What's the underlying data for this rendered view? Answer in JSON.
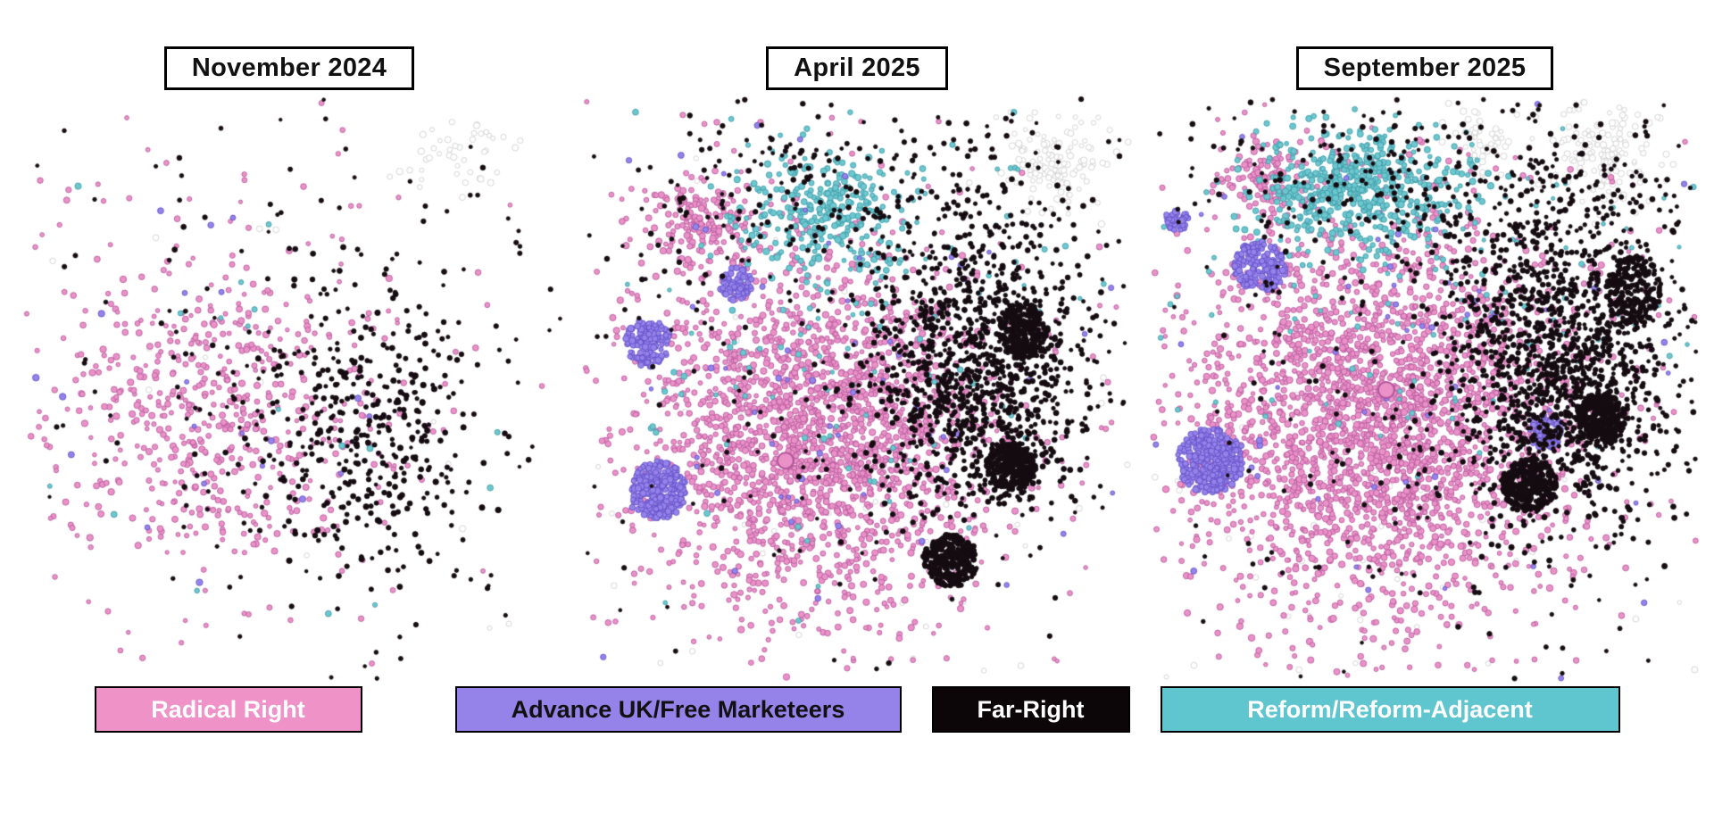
{
  "legend": {
    "items": [
      {
        "label": "Radical Right",
        "color": "#ee92c8",
        "text_color": "#ffffff",
        "border": "#000000"
      },
      {
        "label": "Advance UK/Free Marketeers",
        "color": "#9583ea",
        "text_color": "#111111",
        "border": "#000000"
      },
      {
        "label": "Far-Right",
        "color": "#0d0609",
        "text_color": "#ffffff",
        "border": "#000000"
      },
      {
        "label": "Reform/Reform-Adjacent",
        "color": "#5fc6d0",
        "text_color": "#ffffff",
        "border": "#000000"
      }
    ]
  },
  "chart_data": {
    "type": "scatter",
    "title": "",
    "legend_entries": [
      "Radical Right",
      "Advance UK/Free Marketeers",
      "Far-Right",
      "Reform/Reform-Adjacent"
    ],
    "series_colors": {
      "radical_right": {
        "fill": "#ea92c7",
        "stroke": "#b2549b"
      },
      "advance_uk": {
        "fill": "#9583ea",
        "stroke": "#5f4bc4"
      },
      "far_right": {
        "fill": "#150c11",
        "stroke": "#150c11"
      },
      "reform": {
        "fill": "#6cc7cf",
        "stroke": "#3a98a4"
      },
      "unaffiliated": {
        "fill": "#ffffff",
        "stroke": "#cccccc"
      }
    },
    "panels": [
      {
        "title": "November 2024",
        "seed": 11,
        "clusters": [
          {
            "s": "unaffiliated",
            "n": 45,
            "cx": 0.8,
            "cy": 0.1,
            "sx": 0.05,
            "sy": 0.04,
            "sh": "g",
            "r": 3
          },
          {
            "s": "unaffiliated",
            "n": 18,
            "cx": 0.55,
            "cy": 0.45,
            "sx": 0.3,
            "sy": 0.3,
            "sh": "g",
            "r": 3
          },
          {
            "s": "radical_right",
            "n": 420,
            "cx": 0.36,
            "cy": 0.55,
            "sx": 0.14,
            "sy": 0.12,
            "sh": "g",
            "r": 3
          },
          {
            "s": "radical_right",
            "n": 200,
            "cx": 0.38,
            "cy": 0.52,
            "sx": 0.24,
            "sy": 0.2,
            "sh": "g",
            "r": 2.8
          },
          {
            "s": "radical_right",
            "n": 45,
            "cx": 0.4,
            "cy": 0.5,
            "sx": 0.38,
            "sy": 0.3,
            "sh": "g",
            "r": 2.6
          },
          {
            "s": "reform",
            "n": 22,
            "cx": 0.35,
            "cy": 0.5,
            "sx": 0.28,
            "sy": 0.26,
            "sh": "g",
            "r": 3
          },
          {
            "s": "advance_uk",
            "n": 26,
            "cx": 0.3,
            "cy": 0.52,
            "sx": 0.27,
            "sy": 0.24,
            "sh": "g",
            "r": 3
          },
          {
            "s": "far_right",
            "n": 330,
            "cx": 0.63,
            "cy": 0.56,
            "sx": 0.1,
            "sy": 0.13,
            "sh": "g",
            "r": 2.6
          },
          {
            "s": "far_right",
            "n": 140,
            "cx": 0.58,
            "cy": 0.5,
            "sx": 0.2,
            "sy": 0.22,
            "sh": "g",
            "r": 2.4
          },
          {
            "s": "far_right",
            "n": 60,
            "cx": 0.55,
            "cy": 0.4,
            "sx": 0.3,
            "sy": 0.28,
            "sh": "g",
            "r": 2.2
          },
          {
            "s": "far_right",
            "n": 35,
            "cx": 0.75,
            "cy": 0.5,
            "sx": 0.12,
            "sy": 0.18,
            "sh": "g",
            "r": 2.4
          }
        ]
      },
      {
        "title": "April 2025",
        "seed": 22,
        "highlight": {
          "x": 0.37,
          "y": 0.62,
          "r": 9
        },
        "clusters": [
          {
            "s": "unaffiliated",
            "n": 130,
            "cx": 0.86,
            "cy": 0.12,
            "sx": 0.05,
            "sy": 0.04,
            "sh": "g",
            "r": 3
          },
          {
            "s": "unaffiliated",
            "n": 60,
            "cx": 0.5,
            "cy": 0.6,
            "sx": 0.35,
            "sy": 0.3,
            "sh": "g",
            "r": 2.8
          },
          {
            "s": "radical_right",
            "n": 2000,
            "cx": 0.43,
            "cy": 0.57,
            "sx": 0.155,
            "sy": 0.15,
            "sh": "g",
            "r": 3
          },
          {
            "s": "radical_right",
            "n": 170,
            "cx": 0.22,
            "cy": 0.21,
            "sx": 0.05,
            "sy": 0.04,
            "sh": "g",
            "r": 3
          },
          {
            "s": "radical_right",
            "n": 300,
            "cx": 0.45,
            "cy": 0.55,
            "sx": 0.3,
            "sy": 0.27,
            "sh": "g",
            "r": 2.8
          },
          {
            "s": "reform",
            "n": 300,
            "cx": 0.43,
            "cy": 0.2,
            "sx": 0.08,
            "sy": 0.055,
            "sh": "g",
            "r": 3
          },
          {
            "s": "reform",
            "n": 130,
            "cx": 0.5,
            "cy": 0.4,
            "sx": 0.22,
            "sy": 0.18,
            "sh": "g",
            "r": 2.8
          },
          {
            "s": "advance_uk",
            "n": 280,
            "cx": 0.14,
            "cy": 0.67,
            "sx": 0.05,
            "sy": 0.05,
            "sh": "d",
            "r": 3
          },
          {
            "s": "advance_uk",
            "n": 140,
            "cx": 0.12,
            "cy": 0.42,
            "sx": 0.042,
            "sy": 0.04,
            "sh": "d",
            "r": 3
          },
          {
            "s": "advance_uk",
            "n": 70,
            "cx": 0.28,
            "cy": 0.32,
            "sx": 0.03,
            "sy": 0.028,
            "sh": "d",
            "r": 3
          },
          {
            "s": "advance_uk",
            "n": 70,
            "cx": 0.4,
            "cy": 0.5,
            "sx": 0.3,
            "sy": 0.25,
            "sh": "g",
            "r": 2.8
          },
          {
            "s": "far_right",
            "n": 1200,
            "cx": 0.72,
            "cy": 0.47,
            "sx": 0.1,
            "sy": 0.13,
            "sh": "g",
            "r": 2.5
          },
          {
            "s": "far_right",
            "n": 260,
            "cx": 0.78,
            "cy": 0.63,
            "sx": 0.045,
            "sy": 0.04,
            "sh": "d",
            "r": 2.6
          },
          {
            "s": "far_right",
            "n": 230,
            "cx": 0.8,
            "cy": 0.4,
            "sx": 0.04,
            "sy": 0.05,
            "sh": "d",
            "r": 2.5
          },
          {
            "s": "far_right",
            "n": 280,
            "cx": 0.67,
            "cy": 0.79,
            "sx": 0.05,
            "sy": 0.045,
            "sh": "d",
            "r": 2.6
          },
          {
            "s": "far_right",
            "n": 260,
            "cx": 0.52,
            "cy": 0.17,
            "sx": 0.27,
            "sy": 0.09,
            "sh": "g",
            "r": 2.4
          },
          {
            "s": "far_right",
            "n": 220,
            "cx": 0.55,
            "cy": 0.5,
            "sx": 0.33,
            "sy": 0.3,
            "sh": "g",
            "r": 2.3
          }
        ]
      },
      {
        "title": "September 2025",
        "seed": 33,
        "highlight": {
          "x": 0.43,
          "y": 0.5,
          "r": 9
        },
        "clusters": [
          {
            "s": "unaffiliated",
            "n": 140,
            "cx": 0.83,
            "cy": 0.1,
            "sx": 0.05,
            "sy": 0.045,
            "sh": "g",
            "r": 3
          },
          {
            "s": "unaffiliated",
            "n": 50,
            "cx": 0.6,
            "cy": 0.07,
            "sx": 0.03,
            "sy": 0.025,
            "sh": "g",
            "r": 3
          },
          {
            "s": "unaffiliated",
            "n": 80,
            "cx": 0.5,
            "cy": 0.75,
            "sx": 0.33,
            "sy": 0.2,
            "sh": "g",
            "r": 2.8
          },
          {
            "s": "radical_right",
            "n": 2400,
            "cx": 0.42,
            "cy": 0.55,
            "sx": 0.17,
            "sy": 0.16,
            "sh": "g",
            "r": 3
          },
          {
            "s": "radical_right",
            "n": 130,
            "cx": 0.21,
            "cy": 0.14,
            "sx": 0.045,
            "sy": 0.035,
            "sh": "g",
            "r": 3
          },
          {
            "s": "radical_right",
            "n": 350,
            "cx": 0.45,
            "cy": 0.55,
            "sx": 0.3,
            "sy": 0.28,
            "sh": "g",
            "r": 2.8
          },
          {
            "s": "reform",
            "n": 550,
            "cx": 0.37,
            "cy": 0.16,
            "sx": 0.1,
            "sy": 0.05,
            "sh": "g",
            "r": 3
          },
          {
            "s": "reform",
            "n": 120,
            "cx": 0.5,
            "cy": 0.35,
            "sx": 0.25,
            "sy": 0.15,
            "sh": "g",
            "r": 2.6
          },
          {
            "s": "advance_uk",
            "n": 320,
            "cx": 0.11,
            "cy": 0.62,
            "sx": 0.06,
            "sy": 0.055,
            "sh": "d",
            "r": 3
          },
          {
            "s": "advance_uk",
            "n": 190,
            "cx": 0.2,
            "cy": 0.29,
            "sx": 0.048,
            "sy": 0.042,
            "sh": "d",
            "r": 3
          },
          {
            "s": "advance_uk",
            "n": 40,
            "cx": 0.05,
            "cy": 0.21,
            "sx": 0.022,
            "sy": 0.02,
            "sh": "d",
            "r": 3
          },
          {
            "s": "advance_uk",
            "n": 90,
            "cx": 0.72,
            "cy": 0.57,
            "sx": 0.032,
            "sy": 0.03,
            "sh": "d",
            "r": 2.8
          },
          {
            "s": "advance_uk",
            "n": 60,
            "cx": 0.45,
            "cy": 0.5,
            "sx": 0.3,
            "sy": 0.25,
            "sh": "g",
            "r": 2.8
          },
          {
            "s": "far_right",
            "n": 1400,
            "cx": 0.74,
            "cy": 0.45,
            "sx": 0.105,
            "sy": 0.14,
            "sh": "g",
            "r": 2.5
          },
          {
            "s": "far_right",
            "n": 280,
            "cx": 0.82,
            "cy": 0.55,
            "sx": 0.045,
            "sy": 0.045,
            "sh": "d",
            "r": 2.6
          },
          {
            "s": "far_right",
            "n": 300,
            "cx": 0.69,
            "cy": 0.66,
            "sx": 0.05,
            "sy": 0.045,
            "sh": "d",
            "r": 2.6
          },
          {
            "s": "far_right",
            "n": 200,
            "cx": 0.88,
            "cy": 0.33,
            "sx": 0.05,
            "sy": 0.06,
            "sh": "d",
            "r": 2.5
          },
          {
            "s": "far_right",
            "n": 300,
            "cx": 0.55,
            "cy": 0.14,
            "sx": 0.26,
            "sy": 0.08,
            "sh": "g",
            "r": 2.4
          },
          {
            "s": "far_right",
            "n": 260,
            "cx": 0.55,
            "cy": 0.5,
            "sx": 0.33,
            "sy": 0.3,
            "sh": "g",
            "r": 2.3
          }
        ]
      }
    ]
  }
}
